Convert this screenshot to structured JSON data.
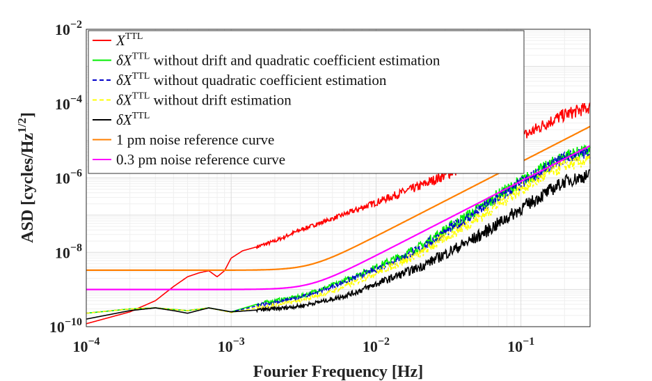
{
  "chart_data": {
    "type": "line",
    "xscale": "log",
    "yscale": "log",
    "xlim": [
      0.0001,
      0.3
    ],
    "ylim": [
      1e-10,
      0.01
    ],
    "xlabel": "Fourier Frequency [Hz]",
    "ylabel": "ASD [cycles/Hz^1/2]",
    "ylabel_main": "ASD [cycles/Hz",
    "ylabel_sup": "1/2",
    "ylabel_close": "]",
    "grid": true,
    "legend_position": "top-left",
    "x_ticks": [
      {
        "value": 0.0001,
        "base": "10",
        "exp": "−4"
      },
      {
        "value": 0.001,
        "base": "10",
        "exp": "−3"
      },
      {
        "value": 0.01,
        "base": "10",
        "exp": "−2"
      },
      {
        "value": 0.1,
        "base": "10",
        "exp": "−1"
      }
    ],
    "y_ticks": [
      {
        "value": 1e-10,
        "base": "10",
        "exp": "−10"
      },
      {
        "value": 1e-08,
        "base": "10",
        "exp": "−8"
      },
      {
        "value": 1e-06,
        "base": "10",
        "exp": "−6"
      },
      {
        "value": 0.0001,
        "base": "10",
        "exp": "−4"
      },
      {
        "value": 0.01,
        "base": "10",
        "exp": "−2"
      }
    ],
    "series": [
      {
        "name": "X^TTL",
        "legend_pre": "",
        "legend_sym": "X",
        "legend_sup": "TTL",
        "legend_post": "",
        "color": "#ff0000",
        "style": "solid",
        "points": [
          [
            0.0001,
            1.2e-10
          ],
          [
            0.0002,
            2.5e-10
          ],
          [
            0.0003,
            5e-10
          ],
          [
            0.0004,
            1.2e-09
          ],
          [
            0.0005,
            2.2e-09
          ],
          [
            0.0006,
            2.8e-09
          ],
          [
            0.0007,
            3.2e-09
          ],
          [
            0.0008,
            2.2e-09
          ],
          [
            0.0009,
            3.2e-09
          ],
          [
            0.001,
            7e-09
          ],
          [
            0.0012,
            1.1e-08
          ],
          [
            0.0015,
            1.4e-08
          ],
          [
            0.002,
            2e-08
          ],
          [
            0.003,
            4e-08
          ],
          [
            0.005,
            8e-08
          ],
          [
            0.007,
            1.3e-07
          ],
          [
            0.01,
            2.2e-07
          ],
          [
            0.015,
            4e-07
          ],
          [
            0.02,
            6e-07
          ],
          [
            0.03,
            1.2e-06
          ],
          [
            0.05,
            3e-06
          ],
          [
            0.07,
            6e-06
          ],
          [
            0.1,
            1.2e-05
          ],
          [
            0.15,
            3e-05
          ],
          [
            0.2,
            5e-05
          ],
          [
            0.3,
            8e-05
          ]
        ]
      },
      {
        "name": "δX^TTL without drift and quadratic coefficient estimation",
        "legend_pre": "δ",
        "legend_sym": "X",
        "legend_sup": "TTL",
        "legend_post": " without drift and quadratic coefficient estimation",
        "color": "#00ee00",
        "style": "solid",
        "points": [
          [
            0.0001,
            2.3e-10
          ],
          [
            0.0002,
            3e-10
          ],
          [
            0.0003,
            3.2e-10
          ],
          [
            0.0005,
            2.7e-10
          ],
          [
            0.0007,
            3.2e-10
          ],
          [
            0.001,
            2.5e-10
          ],
          [
            0.0015,
            4e-10
          ],
          [
            0.002,
            5e-10
          ],
          [
            0.003,
            6.5e-10
          ],
          [
            0.005,
            1.3e-09
          ],
          [
            0.007,
            2.2e-09
          ],
          [
            0.01,
            4e-09
          ],
          [
            0.015,
            8e-09
          ],
          [
            0.02,
            1.4e-08
          ],
          [
            0.03,
            4e-08
          ],
          [
            0.05,
            1.4e-07
          ],
          [
            0.07,
            3.5e-07
          ],
          [
            0.1,
            8e-07
          ],
          [
            0.15,
            2e-06
          ],
          [
            0.2,
            4e-06
          ],
          [
            0.3,
            5.5e-06
          ]
        ]
      },
      {
        "name": "δX^TTL without quadratic coefficient estimation",
        "legend_pre": "δ",
        "legend_sym": "X",
        "legend_sup": "TTL",
        "legend_post": " without quadratic coefficient estimation",
        "color": "#0000cc",
        "style": "dashed",
        "points": [
          [
            0.0001,
            2.3e-10
          ],
          [
            0.0002,
            3e-10
          ],
          [
            0.0003,
            3.2e-10
          ],
          [
            0.0005,
            2.7e-10
          ],
          [
            0.0007,
            3.2e-10
          ],
          [
            0.001,
            2.5e-10
          ],
          [
            0.0015,
            3.6e-10
          ],
          [
            0.002,
            4.5e-10
          ],
          [
            0.003,
            6e-10
          ],
          [
            0.005,
            1.2e-09
          ],
          [
            0.007,
            2e-09
          ],
          [
            0.01,
            3.5e-09
          ],
          [
            0.015,
            7e-09
          ],
          [
            0.02,
            1.2e-08
          ],
          [
            0.03,
            3.5e-08
          ],
          [
            0.05,
            1.2e-07
          ],
          [
            0.07,
            3e-07
          ],
          [
            0.1,
            7e-07
          ],
          [
            0.15,
            1.8e-06
          ],
          [
            0.2,
            3.5e-06
          ],
          [
            0.3,
            5e-06
          ]
        ]
      },
      {
        "name": "δX^TTL without drift estimation",
        "legend_pre": "δ",
        "legend_sym": "X",
        "legend_sup": "TTL",
        "legend_post": " without drift estimation",
        "color": "#ffff00",
        "style": "dashed",
        "points": [
          [
            0.0001,
            2.3e-10
          ],
          [
            0.0002,
            3e-10
          ],
          [
            0.0003,
            3.2e-10
          ],
          [
            0.0005,
            2.7e-10
          ],
          [
            0.0007,
            3.2e-10
          ],
          [
            0.001,
            2.4e-10
          ],
          [
            0.0015,
            3.2e-10
          ],
          [
            0.002,
            3.8e-10
          ],
          [
            0.003,
            5e-10
          ],
          [
            0.005,
            9e-10
          ],
          [
            0.007,
            1.5e-09
          ],
          [
            0.01,
            2.8e-09
          ],
          [
            0.015,
            5.5e-09
          ],
          [
            0.02,
            9e-09
          ],
          [
            0.03,
            2.5e-08
          ],
          [
            0.05,
            8e-08
          ],
          [
            0.07,
            2e-07
          ],
          [
            0.1,
            5e-07
          ],
          [
            0.15,
            1.2e-06
          ],
          [
            0.2,
            2.2e-06
          ],
          [
            0.3,
            3e-06
          ]
        ]
      },
      {
        "name": "δX^TTL",
        "legend_pre": "δ",
        "legend_sym": "X",
        "legend_sup": "TTL",
        "legend_post": "",
        "color": "#000000",
        "style": "solid",
        "points": [
          [
            0.0001,
            1.6e-10
          ],
          [
            0.0002,
            2.7e-10
          ],
          [
            0.0003,
            3.2e-10
          ],
          [
            0.0004,
            2.7e-10
          ],
          [
            0.0005,
            2.3e-10
          ],
          [
            0.0007,
            3.2e-10
          ],
          [
            0.001,
            2.5e-10
          ],
          [
            0.0015,
            2.8e-10
          ],
          [
            0.002,
            3e-10
          ],
          [
            0.003,
            3.6e-10
          ],
          [
            0.005,
            5.5e-10
          ],
          [
            0.007,
            8e-10
          ],
          [
            0.01,
            1.4e-09
          ],
          [
            0.015,
            2.6e-09
          ],
          [
            0.02,
            4e-09
          ],
          [
            0.03,
            9e-09
          ],
          [
            0.05,
            2.6e-08
          ],
          [
            0.07,
            6e-08
          ],
          [
            0.1,
            1.5e-07
          ],
          [
            0.15,
            4e-07
          ],
          [
            0.2,
            8e-07
          ],
          [
            0.3,
            1.2e-06
          ]
        ]
      },
      {
        "name": "1 pm noise reference curve",
        "legend_pre": "1 pm noise reference curve",
        "legend_sym": "",
        "legend_sup": "",
        "legend_post": "",
        "color": "#ff7f00",
        "style": "solid",
        "model": {
          "plateau": 3.3e-09,
          "corner": 0.0035
        }
      },
      {
        "name": "0.3 pm noise reference curve",
        "legend_pre": "0.3 pm noise reference curve",
        "legend_sym": "",
        "legend_sup": "",
        "legend_post": "",
        "color": "#ff00ff",
        "style": "solid",
        "model": {
          "plateau": 1e-09,
          "corner": 0.0035
        }
      }
    ]
  }
}
